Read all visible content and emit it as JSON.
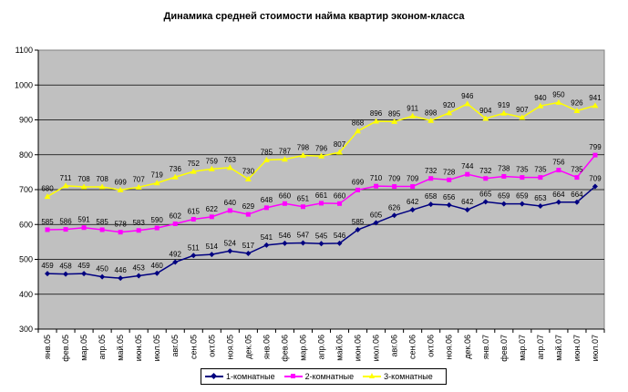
{
  "chart_data": {
    "type": "line",
    "title": "Динамика средней стоимости найма квартир эконом-класса",
    "xlabel": "",
    "ylabel": "",
    "ylim": [
      300,
      1100
    ],
    "ytick_step": 100,
    "grid": true,
    "legend_position": "bottom",
    "background_color": "#c0c0c0",
    "categories": [
      "янв.05",
      "фев.05",
      "мар.05",
      "апр.05",
      "май.05",
      "июн.05",
      "июл.05",
      "авг.05",
      "сен.05",
      "окт.05",
      "ноя.05",
      "дек.05",
      "янв.06",
      "фев.06",
      "мар.06",
      "апр.06",
      "май.06",
      "июн.06",
      "июл.06",
      "авг.06",
      "сен.06",
      "окт.06",
      "ноя.06",
      "дек.06",
      "янв.07",
      "фев.07",
      "мар.07",
      "апр.07",
      "май.07",
      "июн.07",
      "июл.07"
    ],
    "series": [
      {
        "name": "1-комнатные",
        "color": "#000080",
        "marker": "diamond",
        "values": [
          459,
          458,
          459,
          450,
          446,
          453,
          460,
          492,
          511,
          514,
          524,
          517,
          541,
          546,
          547,
          545,
          546,
          585,
          605,
          626,
          642,
          658,
          656,
          642,
          665,
          659,
          659,
          653,
          664,
          664,
          709
        ]
      },
      {
        "name": "2-комнатные",
        "color": "#ff00ff",
        "marker": "square",
        "values": [
          585,
          586,
          591,
          585,
          578,
          583,
          590,
          602,
          615,
          622,
          640,
          629,
          648,
          660,
          651,
          661,
          660,
          699,
          710,
          709,
          709,
          732,
          728,
          744,
          732,
          738,
          735,
          735,
          756,
          735,
          799
        ]
      },
      {
        "name": "3-комнатные",
        "color": "#ffff00",
        "marker": "triangle",
        "values": [
          680,
          711,
          708,
          708,
          699,
          707,
          719,
          736,
          752,
          759,
          763,
          730,
          785,
          787,
          798,
          796,
          807,
          868,
          896,
          895,
          911,
          898,
          920,
          946,
          904,
          919,
          907,
          940,
          950,
          926,
          941
        ]
      }
    ]
  }
}
